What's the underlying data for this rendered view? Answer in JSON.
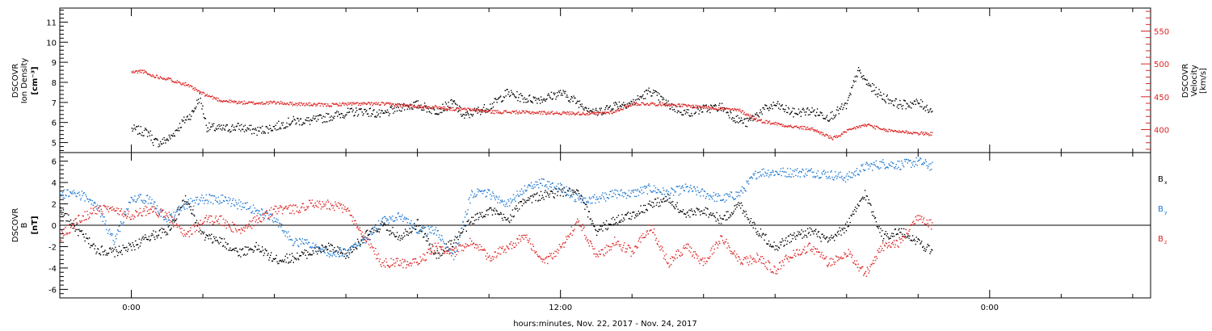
{
  "chart_data": [
    {
      "type": "scatter",
      "panel": "plasma",
      "ylabel": {
        "line1": "DSCOVR",
        "line2": "Ion Density",
        "units": "[cm⁻³]"
      },
      "ylabel_right": {
        "line1": "DSCOVR",
        "line2": "Velocity",
        "units": "[km/s]"
      },
      "ylim": [
        4.5,
        11.7
      ],
      "yticks": [
        5,
        6,
        7,
        8,
        9,
        10,
        11
      ],
      "ylim_right": [
        365,
        585
      ],
      "yticks_right": [
        400,
        450,
        500,
        550
      ],
      "xlim_hours": [
        -2,
        28.5
      ],
      "series": [
        {
          "axis": "left",
          "color": "#000000",
          "x": [
            0.0,
            0.5,
            0.6,
            0.8,
            1.1,
            1.4,
            1.7,
            1.9,
            2.1,
            2.5,
            3.0,
            3.5,
            4.0,
            4.5,
            5.0,
            5.5,
            6.0,
            6.5,
            7.0,
            7.5,
            8.0,
            8.5,
            9.0,
            9.3,
            9.5,
            10.0,
            10.5,
            11.0,
            11.5,
            12.0,
            12.5,
            13.0,
            13.5,
            14.0,
            14.5,
            15.0,
            15.5,
            16.0,
            16.5,
            16.9,
            17.2,
            17.6,
            18.0,
            18.5,
            19.0,
            19.5,
            20.0,
            20.3,
            20.6,
            21.0,
            21.5,
            22.0,
            22.4
          ],
          "y": [
            5.7,
            5.5,
            5.1,
            5.0,
            5.3,
            6.0,
            6.5,
            7.3,
            5.8,
            5.7,
            5.8,
            5.6,
            5.8,
            6.1,
            6.1,
            6.3,
            6.5,
            6.6,
            6.4,
            6.8,
            6.9,
            6.6,
            7.0,
            6.3,
            6.5,
            6.8,
            7.5,
            7.2,
            7.2,
            7.5,
            7.0,
            6.5,
            6.9,
            7.0,
            7.6,
            6.9,
            6.5,
            6.7,
            6.8,
            6.2,
            6.0,
            6.6,
            6.9,
            6.5,
            6.6,
            6.3,
            6.9,
            8.6,
            7.9,
            7.3,
            6.9,
            7.0,
            6.6
          ]
        },
        {
          "axis": "right",
          "color": "#dd2222",
          "x": [
            0.0,
            0.3,
            0.5,
            1.0,
            1.5,
            2.0,
            2.5,
            3.0,
            3.5,
            4.0,
            4.5,
            5.0,
            5.5,
            6.0,
            6.5,
            7.0,
            7.5,
            8.0,
            8.5,
            9.0,
            9.5,
            10.0,
            11.0,
            12.0,
            13.0,
            13.5,
            14.0,
            14.5,
            15.0,
            15.5,
            16.0,
            17.0,
            17.5,
            18.0,
            18.5,
            19.0,
            19.3,
            19.6,
            20.0,
            20.3,
            20.6,
            21.0,
            21.5,
            22.0,
            22.4
          ],
          "y": [
            488,
            490,
            484,
            478,
            470,
            455,
            445,
            442,
            441,
            442,
            440,
            439,
            438,
            440,
            440,
            440,
            438,
            436,
            435,
            432,
            431,
            428,
            427,
            426,
            425,
            428,
            440,
            440,
            439,
            437,
            435,
            430,
            415,
            410,
            405,
            402,
            395,
            387,
            398,
            405,
            408,
            400,
            398,
            395,
            394
          ]
        }
      ],
      "notes": "black = ion density (left axis), red = velocity (right axis)"
    },
    {
      "type": "scatter",
      "panel": "magnetic-field",
      "ylabel": {
        "line1": "DSCOVR",
        "line2": "B",
        "units": "[nT]"
      },
      "ylim": [
        -6.8,
        6.8
      ],
      "yticks": [
        -6,
        -4,
        -2,
        0,
        2,
        4,
        6
      ],
      "xlim_hours": [
        -2,
        28.5
      ],
      "legend": {
        "placement": "right",
        "entries": [
          {
            "label": "B",
            "sub": "x",
            "color": "#000000"
          },
          {
            "label": "B",
            "sub": "y",
            "color": "#1f78d0"
          },
          {
            "label": "B",
            "sub": "z",
            "color": "#dd2222"
          }
        ]
      },
      "series": [
        {
          "color": "#000000",
          "x": [
            -2.0,
            -1.5,
            -1.0,
            -0.5,
            0.0,
            0.5,
            1.0,
            1.5,
            2.0,
            2.5,
            3.0,
            3.5,
            4.0,
            4.5,
            5.0,
            5.5,
            6.0,
            6.5,
            7.0,
            7.5,
            8.0,
            8.5,
            9.0,
            9.5,
            10.0,
            10.5,
            11.0,
            11.5,
            12.0,
            12.5,
            13.0,
            13.5,
            14.0,
            14.5,
            15.0,
            15.5,
            16.0,
            16.5,
            17.0,
            17.5,
            18.0,
            18.5,
            19.0,
            19.5,
            20.0,
            20.5,
            21.0,
            21.5,
            22.0,
            22.4
          ],
          "y": [
            1.5,
            -0.5,
            -2.2,
            -2.5,
            -2.0,
            -1.0,
            -0.5,
            2.5,
            -1.0,
            -1.5,
            -2.5,
            -2.0,
            -3.2,
            -3.0,
            -2.5,
            -2.0,
            -2.8,
            -1.0,
            0.0,
            -1.0,
            0.2,
            -2.8,
            -1.5,
            0.5,
            1.5,
            0.5,
            2.5,
            2.8,
            3.2,
            3.0,
            -0.5,
            0.5,
            1.0,
            2.0,
            2.5,
            1.0,
            1.5,
            0.5,
            2.0,
            -0.5,
            -2.0,
            -1.0,
            -0.5,
            -1.5,
            0.0,
            3.0,
            -1.0,
            -0.5,
            -1.5,
            -2.5
          ]
        },
        {
          "color": "#1f78d0",
          "x": [
            -2.0,
            -1.5,
            -1.0,
            -0.5,
            0.0,
            0.5,
            1.0,
            1.5,
            2.0,
            2.5,
            3.0,
            3.5,
            4.0,
            4.5,
            5.0,
            5.5,
            6.0,
            6.5,
            7.0,
            7.5,
            8.0,
            8.5,
            9.0,
            9.5,
            10.0,
            10.5,
            11.0,
            11.5,
            12.0,
            12.5,
            13.0,
            13.5,
            14.0,
            14.5,
            15.0,
            15.5,
            16.0,
            16.5,
            17.0,
            17.5,
            18.0,
            18.5,
            19.0,
            19.5,
            20.0,
            20.5,
            21.0,
            21.5,
            22.0,
            22.4
          ],
          "y": [
            3.0,
            3.0,
            2.0,
            -1.5,
            2.5,
            2.5,
            0.5,
            2.0,
            2.5,
            2.5,
            2.0,
            1.5,
            0.5,
            -1.5,
            -1.8,
            -2.5,
            -2.5,
            -1.5,
            0.5,
            1.0,
            -0.5,
            -0.5,
            -3.0,
            3.0,
            3.0,
            2.0,
            3.5,
            4.0,
            3.5,
            2.5,
            2.5,
            3.0,
            3.0,
            3.5,
            3.0,
            3.5,
            3.0,
            2.5,
            3.0,
            5.0,
            5.0,
            5.0,
            5.0,
            4.8,
            4.5,
            5.5,
            5.8,
            5.7,
            6.0,
            5.5
          ]
        },
        {
          "color": "#dd2222",
          "x": [
            -2.0,
            -1.5,
            -1.0,
            -0.5,
            0.0,
            0.5,
            1.0,
            1.5,
            2.0,
            2.5,
            3.0,
            3.5,
            4.0,
            4.5,
            5.0,
            5.5,
            6.0,
            6.5,
            7.0,
            7.5,
            8.0,
            8.5,
            9.0,
            9.5,
            10.0,
            10.5,
            11.0,
            11.5,
            12.0,
            12.5,
            13.0,
            13.5,
            14.0,
            14.5,
            15.0,
            15.5,
            16.0,
            16.5,
            17.0,
            17.5,
            18.0,
            18.5,
            19.0,
            19.5,
            20.0,
            20.5,
            21.0,
            21.5,
            22.0,
            22.4
          ],
          "y": [
            -1.0,
            0.5,
            1.5,
            1.5,
            1.0,
            1.5,
            1.0,
            -1.0,
            0.5,
            0.5,
            -0.5,
            0.5,
            1.5,
            1.5,
            2.0,
            2.0,
            1.5,
            -1.0,
            -3.5,
            -3.5,
            -3.5,
            -2.0,
            -2.5,
            -1.5,
            -3.0,
            -2.0,
            -1.0,
            -3.5,
            -2.0,
            0.5,
            -3.0,
            -1.5,
            -2.5,
            0.0,
            -3.5,
            -2.0,
            -3.5,
            -1.0,
            -3.5,
            -3.0,
            -4.2,
            -2.5,
            -2.0,
            -3.5,
            -2.5,
            -4.5,
            -2.0,
            -1.5,
            1.0,
            0.0
          ]
        }
      ]
    }
  ],
  "x_axis": {
    "ticks": [
      {
        "hour": 0,
        "label": "0:00"
      },
      {
        "hour": 12,
        "label": "12:00"
      },
      {
        "hour": 24,
        "label": "0:00"
      }
    ],
    "minor_step_hours": 2,
    "title": "hours:minutes, Nov. 22, 2017 - Nov. 24, 2017"
  },
  "labels": {
    "bx": "B",
    "bx_sub": "x",
    "by": "B",
    "by_sub": "y",
    "bz": "B",
    "bz_sub": "z",
    "x_title": "hours:minutes, Nov. 22, 2017 - Nov. 24, 2017"
  }
}
